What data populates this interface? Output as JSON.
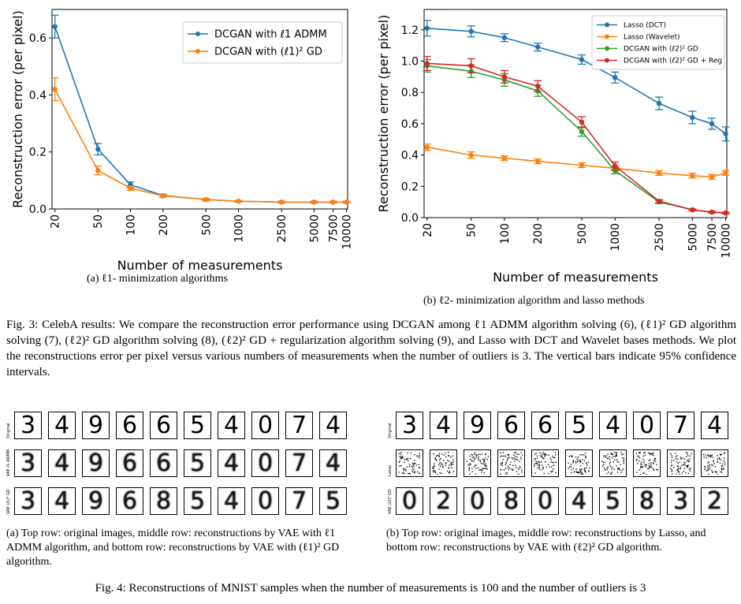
{
  "chart_data": [
    {
      "type": "line",
      "x_positions_label": "measurements",
      "categories": [
        "20",
        "50",
        "100",
        "200",
        "500",
        "1000",
        "2500",
        "5000",
        "7500",
        "10000"
      ],
      "xlabel": "Number of measurements",
      "ylabel": "Reconstruction error (per pixel)",
      "ylim": [
        0,
        0.7
      ],
      "yticks": [
        "0.0",
        "0.2",
        "0.4",
        "0.6"
      ],
      "legend_position": "top-right",
      "series": [
        {
          "name": "DCGAN with ℓ1 ADMM",
          "color": "#1f77b4",
          "values": [
            0.64,
            0.21,
            0.085,
            0.047,
            0.033,
            0.027,
            0.024,
            0.024,
            0.024,
            0.024
          ],
          "errors": [
            0.04,
            0.02,
            0.01,
            0.005,
            0.004,
            0.003,
            0.003,
            0.003,
            0.003,
            0.003
          ]
        },
        {
          "name": "DCGAN with (ℓ1)² GD",
          "color": "#ff7f0e",
          "values": [
            0.42,
            0.135,
            0.073,
            0.046,
            0.033,
            0.027,
            0.024,
            0.024,
            0.024,
            0.024
          ],
          "errors": [
            0.04,
            0.015,
            0.008,
            0.005,
            0.004,
            0.003,
            0.003,
            0.003,
            0.003,
            0.003
          ]
        }
      ]
    },
    {
      "type": "line",
      "categories": [
        "20",
        "50",
        "100",
        "200",
        "500",
        "1000",
        "2500",
        "5000",
        "7500",
        "10000"
      ],
      "xlabel": "Number of measurements",
      "ylabel": "Reconstruction error (per pixel)",
      "ylim": [
        0,
        1.33
      ],
      "yticks": [
        "0.0",
        "0.2",
        "0.4",
        "0.6",
        "0.8",
        "1.0",
        "1.2"
      ],
      "legend_position": "top-right",
      "series": [
        {
          "name": "Lasso (DCT)",
          "color": "#1f77b4",
          "values": [
            1.21,
            1.19,
            1.15,
            1.09,
            1.01,
            0.895,
            0.73,
            0.64,
            0.6,
            0.535
          ],
          "errors": [
            0.05,
            0.035,
            0.025,
            0.025,
            0.03,
            0.035,
            0.04,
            0.04,
            0.035,
            0.045
          ]
        },
        {
          "name": "Lasso (Wavelet)",
          "color": "#ff7f0e",
          "values": [
            0.45,
            0.4,
            0.38,
            0.36,
            0.335,
            0.315,
            0.285,
            0.268,
            0.26,
            0.285
          ],
          "errors": [
            0.02,
            0.02,
            0.015,
            0.015,
            0.015,
            0.015,
            0.015,
            0.015,
            0.015,
            0.015
          ]
        },
        {
          "name": "DCGAN with (ℓ2)² GD",
          "color": "#2ca02c",
          "values": [
            0.97,
            0.935,
            0.88,
            0.81,
            0.55,
            0.3,
            0.1,
            0.05,
            0.035,
            0.03
          ],
          "errors": [
            0.04,
            0.04,
            0.04,
            0.035,
            0.03,
            0.02,
            0.01,
            0.005,
            0.005,
            0.005
          ]
        },
        {
          "name": "DCGAN with (ℓ2)² GD + Reg",
          "color": "#d62728",
          "values": [
            0.985,
            0.97,
            0.9,
            0.84,
            0.61,
            0.33,
            0.105,
            0.05,
            0.035,
            0.03
          ],
          "errors": [
            0.045,
            0.045,
            0.04,
            0.035,
            0.035,
            0.025,
            0.01,
            0.005,
            0.005,
            0.005
          ]
        }
      ]
    }
  ],
  "captions": {
    "sub_a": "(a) ℓ1- minimization algorithms",
    "sub_b": "(b) ℓ2- minimization algorithm and lasso methods",
    "fig3": "Fig. 3: CelebA results: We compare the reconstruction error performance  using DCGAN  among ℓ1 ADMM algorithm solving (6), (ℓ1)² GD algorithm solving (7), (ℓ2)² GD algorithm solving (8), (ℓ2)² GD + regularization algorithm solving (9),  and Lasso with DCT and Wavelet bases methods. We plot the reconstructions error per pixel versus various numbers of measurements when the number of outliers is 3. The vertical bars indicate 95% confidence intervals.",
    "fig4a": "(a) Top row: original images, middle row: reconstructions by VAE with ℓ1 ADMM algorithm, and bottom row: reconstructions by VAE with (ℓ1)² GD algorithm.",
    "fig4b": "(b) Top row: original images, middle row: reconstructions by Lasso, and bottom row: reconstructions by VAE with (ℓ2)² GD algorithm.",
    "fig4": "Fig. 4: Reconstructions of MNIST samples when the number of measurements is 100 and the number of outliers is 3"
  },
  "mnist_a": {
    "row_labels": [
      "Original",
      "VAE ℓ1 ADMM",
      "VAE (ℓ1)² GD"
    ],
    "rows": [
      [
        "3",
        "4",
        "9",
        "6",
        "6",
        "5",
        "4",
        "0",
        "7",
        "4"
      ],
      [
        "3",
        "4",
        "9",
        "6",
        "6",
        "5",
        "4",
        "0",
        "7",
        "4"
      ],
      [
        "3",
        "4",
        "9",
        "6",
        "8",
        "5",
        "4",
        "0",
        "7",
        "5"
      ]
    ]
  },
  "mnist_b": {
    "row_labels": [
      "Original",
      "Lasso",
      "VAE (ℓ2)² GD"
    ],
    "rows": [
      [
        "3",
        "4",
        "9",
        "6",
        "6",
        "5",
        "4",
        "0",
        "7",
        "4"
      ],
      [
        "",
        "",
        "",
        "",
        "",
        "",
        "",
        "",
        "",
        ""
      ],
      [
        "0",
        "2",
        "0",
        "8",
        "0",
        "4",
        "5",
        "8",
        "3",
        "2"
      ]
    ]
  }
}
